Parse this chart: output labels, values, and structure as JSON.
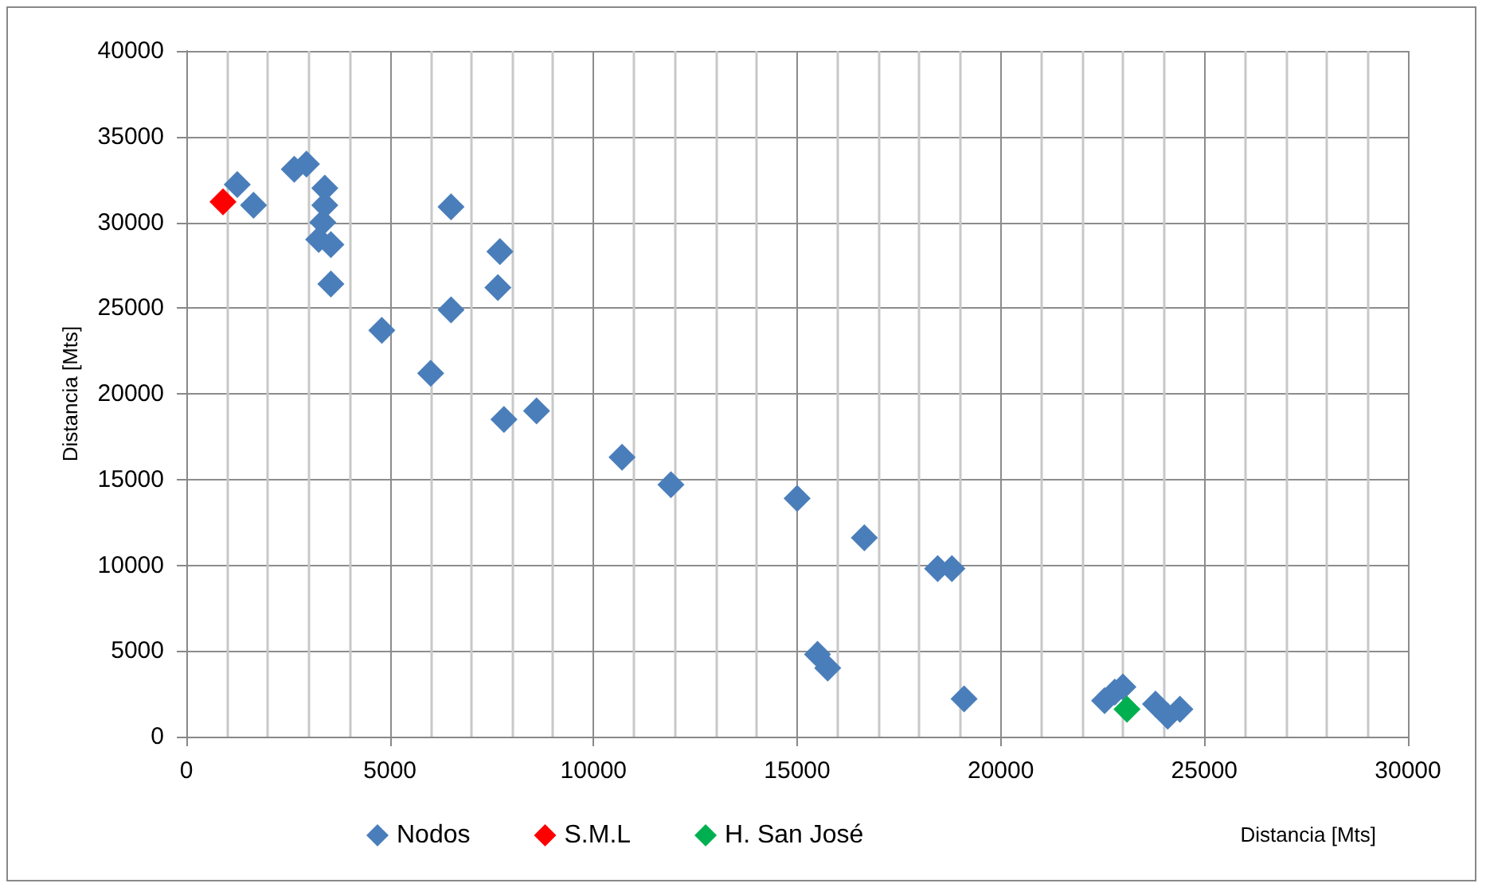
{
  "chart_data": {
    "type": "scatter",
    "xlabel": "Distancia [Mts]",
    "ylabel": "Distancia [Mts]",
    "xlim": [
      0,
      30000
    ],
    "xticks": [
      0,
      5000,
      10000,
      15000,
      20000,
      25000,
      30000
    ],
    "ylim": [
      0,
      40000
    ],
    "yticks": [
      0,
      5000,
      10000,
      15000,
      20000,
      25000,
      30000,
      35000,
      40000
    ],
    "grid": true,
    "legend": "bottom",
    "marker": "diamond",
    "series": [
      {
        "name": "Nodos",
        "color": "#4a7ebb",
        "x": [
          1250,
          1650,
          2650,
          2950,
          3400,
          3400,
          3350,
          3250,
          3550,
          3550,
          4800,
          6000,
          6500,
          6500,
          7700,
          7650,
          7800,
          8600,
          10700,
          11900,
          15000,
          16650,
          18450,
          18800,
          15500,
          15750,
          19100,
          22550,
          22800,
          23000,
          23800,
          24100,
          24400
        ],
        "values": [
          32200,
          31000,
          33100,
          33400,
          32000,
          31000,
          30000,
          29000,
          28700,
          26400,
          23700,
          21200,
          30900,
          24900,
          28300,
          26200,
          18500,
          19000,
          16300,
          14700,
          13900,
          11600,
          9800,
          9800,
          4800,
          4000,
          2200,
          2100,
          2600,
          2900,
          1900,
          1200,
          1600
        ]
      },
      {
        "name": "S.M.L",
        "color": "#ff0000",
        "x": [
          900
        ],
        "values": [
          31200
        ]
      },
      {
        "name": "H. San José",
        "color": "#00b050",
        "x": [
          23100
        ],
        "values": [
          1600
        ]
      }
    ]
  }
}
